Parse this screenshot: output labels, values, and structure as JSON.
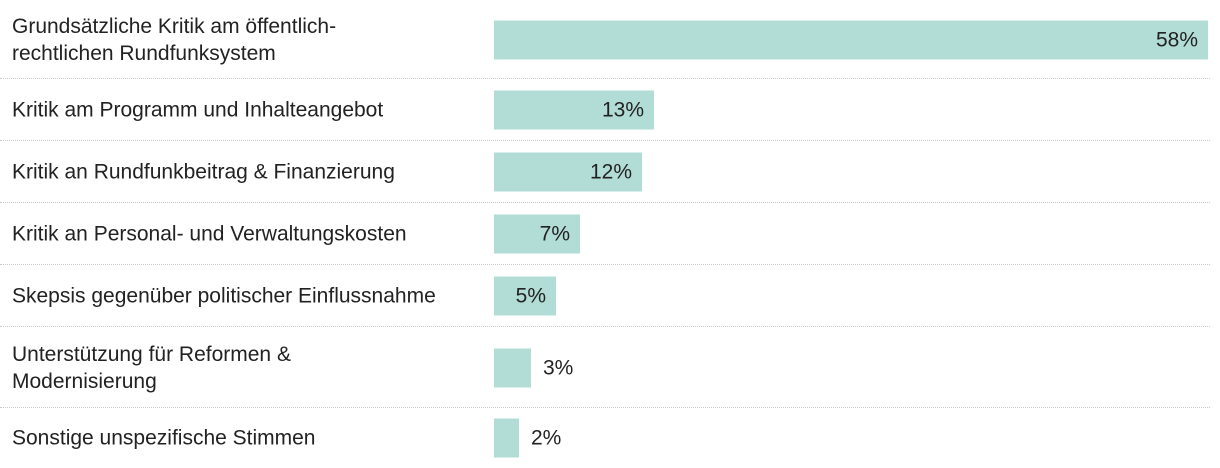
{
  "chart_data": {
    "type": "bar",
    "orientation": "horizontal",
    "categories": [
      "Grundsätzliche Kritik am öffentlich-rechtlichen Rundfunksystem",
      "Kritik am Programm und Inhalteangebot",
      "Kritik an Rundfunkbeitrag & Finanzierung",
      "Kritik an Personal- und Verwaltungskosten",
      "Skepsis gegenüber politischer Einflussnahme",
      "Unterstützung für Reformen & Modernisierung",
      "Sonstige unspezifische Stimmen"
    ],
    "category_lines": [
      [
        "Grundsätzliche Kritik am öffentlich-",
        "rechtlichen Rundfunksystem"
      ],
      [
        "Kritik am Programm und Inhalteangebot"
      ],
      [
        "Kritik an Rundfunkbeitrag & Finanzierung"
      ],
      [
        "Kritik an Personal- und Verwaltungskosten"
      ],
      [
        "Skepsis gegenüber politischer Einflussnahme"
      ],
      [
        "Unterstützung für Reformen &",
        "Modernisierung"
      ],
      [
        "Sonstige unspezifische Stimmen"
      ]
    ],
    "values": [
      58,
      13,
      12,
      7,
      5,
      3,
      2
    ],
    "value_labels": [
      "58%",
      "13%",
      "12%",
      "7%",
      "5%",
      "3%",
      "2%"
    ],
    "unit": "%",
    "xlim": [
      0,
      58
    ],
    "grid": false,
    "legend": "none",
    "bar_color": "#b2dcd6",
    "divider_color": "#c9c9c9"
  }
}
